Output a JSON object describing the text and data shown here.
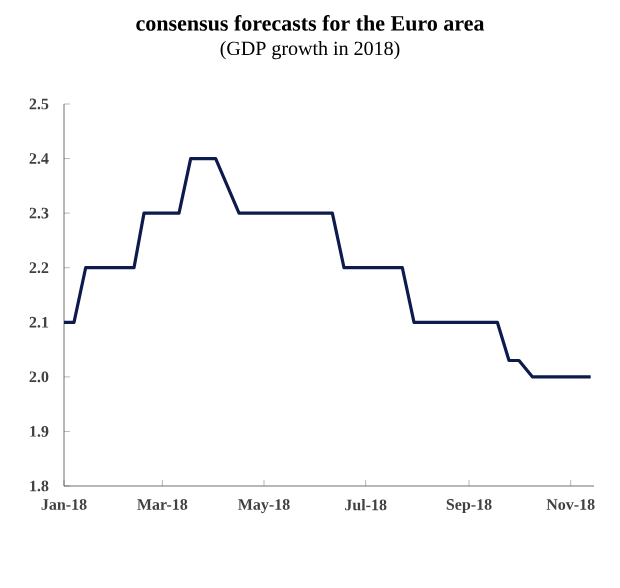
{
  "chart_data": {
    "type": "line",
    "title": "consensus forecasts for the Euro area",
    "subtitle": "(GDP growth in 2018)",
    "x": [
      "2018-01-01",
      "2018-01-07",
      "2018-01-14",
      "2018-02-12",
      "2018-02-18",
      "2018-03-11",
      "2018-03-18",
      "2018-04-02",
      "2018-04-16",
      "2018-06-11",
      "2018-06-18",
      "2018-07-23",
      "2018-07-30",
      "2018-09-18",
      "2018-09-25",
      "2018-10-01",
      "2018-10-09",
      "2018-11-13"
    ],
    "series": [
      {
        "color": "#0d1b4c",
        "values": [
          2.1,
          2.1,
          2.2,
          2.2,
          2.3,
          2.3,
          2.4,
          2.4,
          2.3,
          2.3,
          2.2,
          2.2,
          2.1,
          2.1,
          2.03,
          2.03,
          2.0,
          2.0
        ]
      }
    ],
    "xlim": [
      "2018-01-01",
      "2018-11-15"
    ],
    "xticks": [
      {
        "value": "2018-01-01",
        "label": "Jan-18"
      },
      {
        "value": "2018-03-01",
        "label": "Mar-18"
      },
      {
        "value": "2018-05-01",
        "label": "May-18"
      },
      {
        "value": "2018-07-01",
        "label": "Jul-18"
      },
      {
        "value": "2018-09-01",
        "label": "Sep-18"
      },
      {
        "value": "2018-11-01",
        "label": "Nov-18"
      }
    ],
    "ylim": [
      1.8,
      2.5
    ],
    "yticks": [
      1.8,
      1.9,
      {
        "value": 2,
        "label": "2.0"
      },
      2.1,
      2.2,
      2.3,
      2.4,
      2.5
    ],
    "grid": false,
    "marker": "none",
    "line_style": "solid"
  }
}
